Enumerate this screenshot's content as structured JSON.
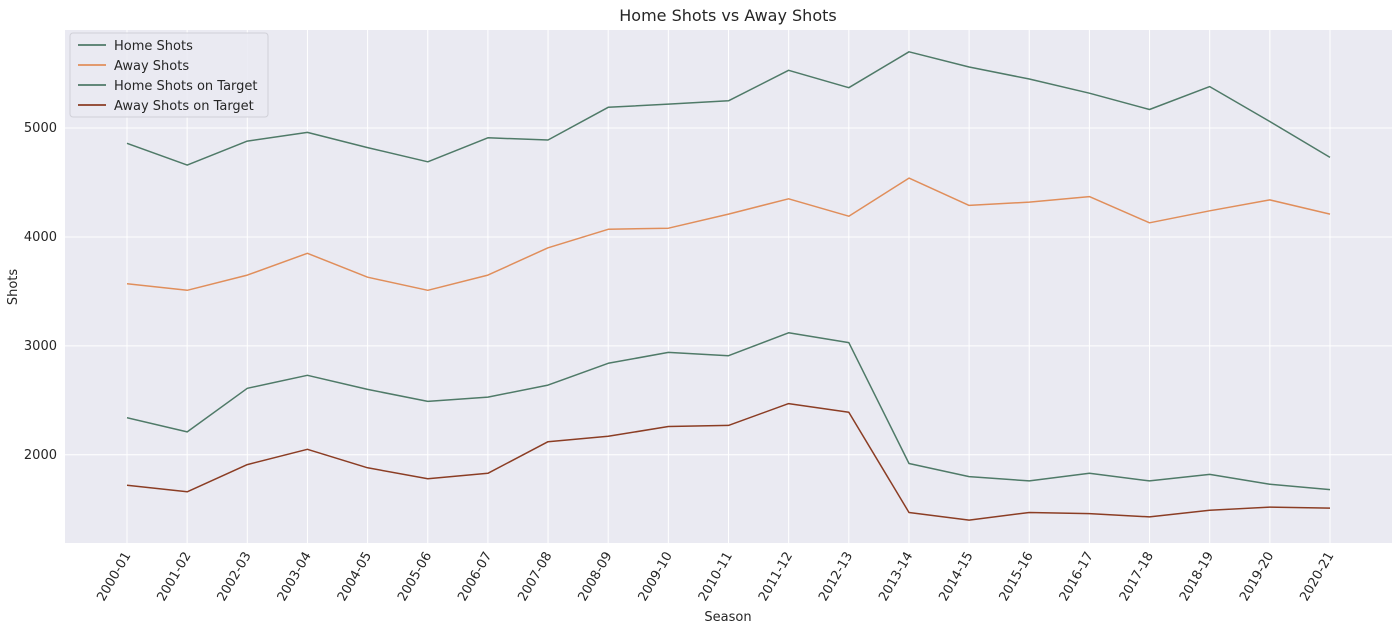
{
  "chart_data": {
    "type": "line",
    "title": "Home Shots vs Away Shots",
    "xlabel": "Season",
    "ylabel": "Shots",
    "x": [
      "2000-01",
      "2001-02",
      "2002-03",
      "2003-04",
      "2004-05",
      "2005-06",
      "2006-07",
      "2007-08",
      "2008-09",
      "2009-10",
      "2010-11",
      "2011-12",
      "2012-13",
      "2013-14",
      "2014-15",
      "2015-16",
      "2016-17",
      "2017-18",
      "2018-19",
      "2019-20",
      "2020-21"
    ],
    "ylim": [
      1190,
      5900
    ],
    "yticks": [
      2000,
      3000,
      4000,
      5000
    ],
    "grid": true,
    "legend_position": "top-left",
    "series": [
      {
        "name": "Home Shots",
        "color": "#4f7a68",
        "values": [
          4860,
          4660,
          4880,
          4960,
          4820,
          4690,
          4910,
          4890,
          5190,
          5220,
          5250,
          5530,
          5370,
          5700,
          5560,
          5450,
          5320,
          5170,
          5380,
          5060,
          4730
        ]
      },
      {
        "name": "Away Shots",
        "color": "#e08e5b",
        "values": [
          3570,
          3510,
          3650,
          3850,
          3630,
          3510,
          3650,
          3900,
          4070,
          4080,
          4210,
          4350,
          4190,
          4540,
          4290,
          4320,
          4370,
          4130,
          4240,
          4340,
          4210
        ]
      },
      {
        "name": "Home Shots on Target",
        "color": "#4f7a68",
        "values": [
          2340,
          2210,
          2610,
          2730,
          2600,
          2490,
          2530,
          2640,
          2840,
          2940,
          2910,
          3120,
          3030,
          1920,
          1800,
          1760,
          1830,
          1760,
          1820,
          1730,
          1680
        ]
      },
      {
        "name": "Away Shots on Target",
        "color": "#8b3d24",
        "values": [
          1720,
          1660,
          1910,
          2050,
          1880,
          1780,
          1830,
          2120,
          2170,
          2260,
          2270,
          2470,
          2390,
          1470,
          1400,
          1470,
          1460,
          1430,
          1490,
          1520,
          1510
        ]
      }
    ]
  }
}
